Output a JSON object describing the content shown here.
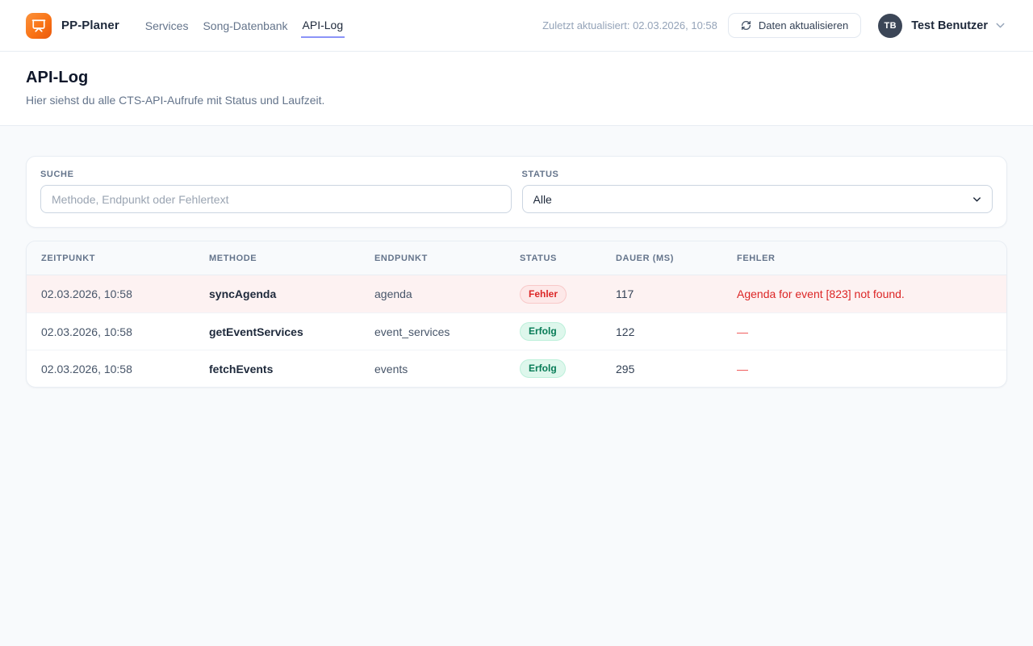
{
  "header": {
    "brand": "PP-Planer",
    "nav": [
      {
        "label": "Services",
        "active": false
      },
      {
        "label": "Song-Datenbank",
        "active": false
      },
      {
        "label": "API-Log",
        "active": true
      }
    ],
    "last_updated": "Zuletzt aktualisiert: 02.03.2026, 10:58",
    "refresh_button": "Daten aktualisieren",
    "user": {
      "initials": "TB",
      "name": "Test Benutzer"
    }
  },
  "page": {
    "title": "API-Log",
    "subtitle": "Hier siehst du alle CTS-API-Aufrufe mit Status und Laufzeit."
  },
  "filters": {
    "search_label": "SUCHE",
    "search_placeholder": "Methode, Endpunkt oder Fehlertext",
    "status_label": "STATUS",
    "status_value": "Alle"
  },
  "table": {
    "columns": [
      "ZEITPUNKT",
      "METHODE",
      "ENDPUNKT",
      "STATUS",
      "DAUER (MS)",
      "FEHLER"
    ],
    "rows": [
      {
        "zeitpunkt": "02.03.2026, 10:58",
        "methode": "syncAgenda",
        "endpunkt": "agenda",
        "status": "Fehler",
        "status_type": "error",
        "dauer": "117",
        "fehler": "Agenda for event [823] not found."
      },
      {
        "zeitpunkt": "02.03.2026, 10:58",
        "methode": "getEventServices",
        "endpunkt": "event_services",
        "status": "Erfolg",
        "status_type": "success",
        "dauer": "122",
        "fehler": "—"
      },
      {
        "zeitpunkt": "02.03.2026, 10:58",
        "methode": "fetchEvents",
        "endpunkt": "events",
        "status": "Erfolg",
        "status_type": "success",
        "dauer": "295",
        "fehler": "—"
      }
    ]
  },
  "colors": {
    "accent_orange": "#f97316",
    "active_underline": "#8b93f8",
    "error_text": "#dc2626",
    "error_row_bg": "#fdf2f2",
    "success_text": "#057a55",
    "page_bg": "#f8fafc"
  }
}
